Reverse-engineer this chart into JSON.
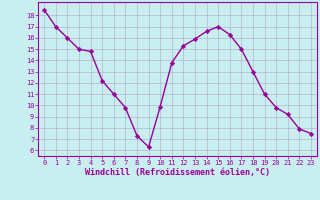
{
  "x": [
    0,
    1,
    2,
    3,
    4,
    5,
    6,
    7,
    8,
    9,
    10,
    11,
    12,
    13,
    14,
    15,
    16,
    17,
    18,
    19,
    20,
    21,
    22,
    23
  ],
  "y": [
    18.5,
    17.0,
    16.0,
    15.0,
    14.8,
    12.2,
    11.0,
    9.8,
    7.3,
    6.3,
    9.9,
    13.8,
    15.3,
    15.9,
    16.6,
    17.0,
    16.3,
    15.0,
    13.0,
    11.0,
    9.8,
    9.2,
    7.9,
    7.5
  ],
  "line_color": "#990099",
  "marker": "D",
  "marker_size": 2.2,
  "bg_color": "#c8eef0",
  "grid_color": "#aaaacc",
  "xlabel": "Windchill (Refroidissement éolien,°C)",
  "ylabel_ticks": [
    6,
    7,
    8,
    9,
    10,
    11,
    12,
    13,
    14,
    15,
    16,
    17,
    18
  ],
  "ylim": [
    5.5,
    19.2
  ],
  "xlim": [
    -0.5,
    23.5
  ],
  "xlabel_ticks": [
    0,
    1,
    2,
    3,
    4,
    5,
    6,
    7,
    8,
    9,
    10,
    11,
    12,
    13,
    14,
    15,
    16,
    17,
    18,
    19,
    20,
    21,
    22,
    23
  ],
  "tick_label_color": "#990099",
  "tick_label_fontsize": 5.0,
  "xlabel_fontsize": 6.0,
  "spine_color": "#990099",
  "axis_bg": "#c8eef0",
  "linewidth": 1.0
}
